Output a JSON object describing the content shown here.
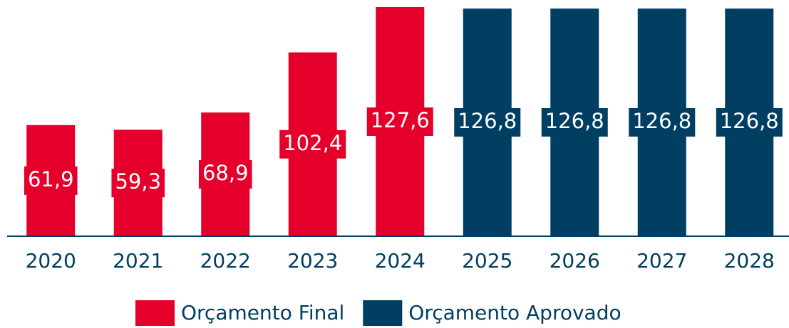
{
  "chart_data": {
    "type": "bar",
    "categories": [
      "2020",
      "2021",
      "2022",
      "2023",
      "2024",
      "2025",
      "2026",
      "2027",
      "2028"
    ],
    "series": [
      {
        "name": "Orçamento Final",
        "color": "#e4002b",
        "values": [
          61.9,
          59.3,
          68.9,
          102.4,
          127.6,
          null,
          null,
          null,
          null
        ],
        "value_labels": [
          "61,9",
          "59,3",
          "68,9",
          "102,4",
          "127,6",
          null,
          null,
          null,
          null
        ]
      },
      {
        "name": "Orçamento Aprovado",
        "color": "#003e62",
        "values": [
          null,
          null,
          null,
          null,
          null,
          126.8,
          126.8,
          126.8,
          126.8
        ],
        "value_labels": [
          null,
          null,
          null,
          null,
          null,
          "126,8",
          "126,8",
          "126,8",
          "126,8"
        ]
      }
    ],
    "ylim": [
      0,
      128
    ],
    "legend": "bottom"
  }
}
